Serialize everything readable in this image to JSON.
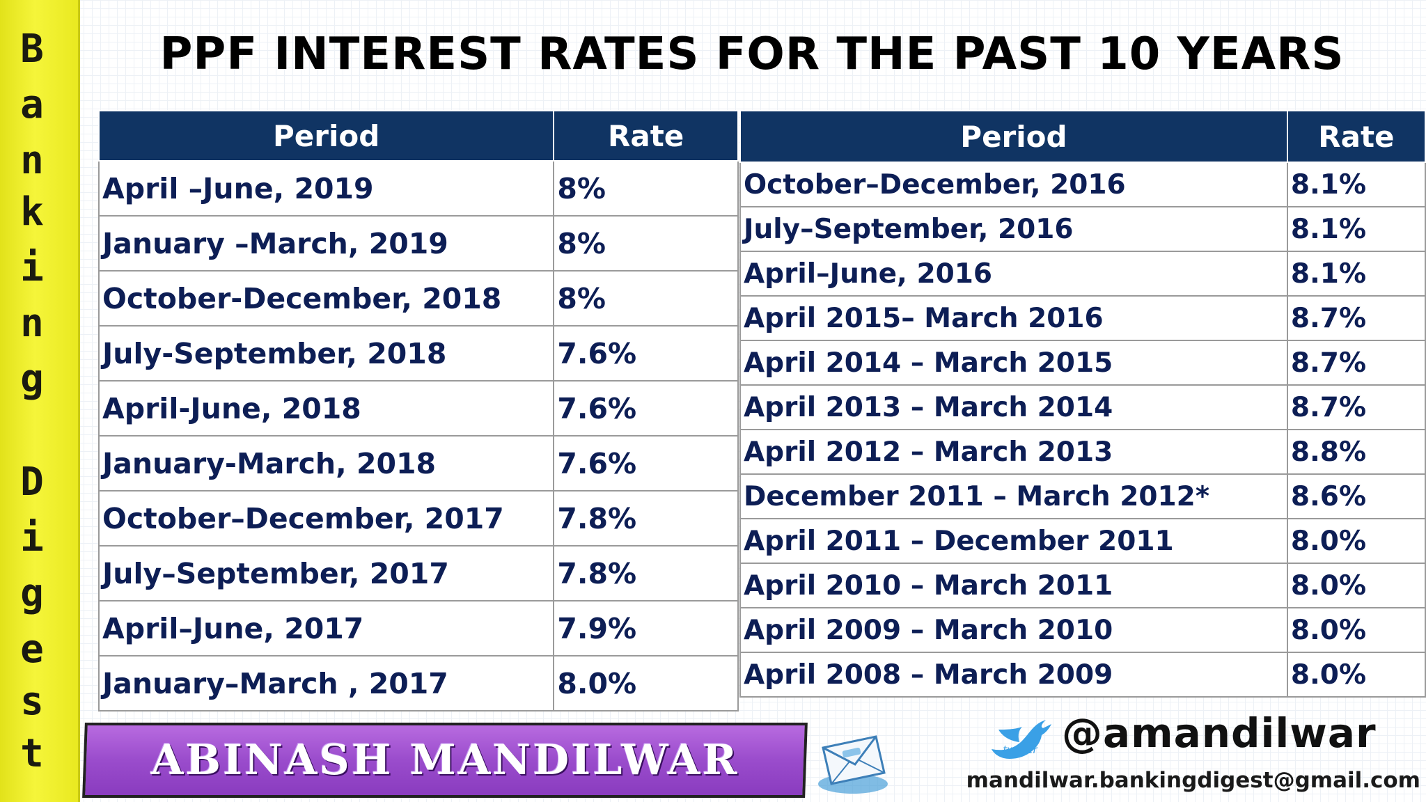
{
  "side_label": {
    "letters": [
      "B",
      "a",
      "n",
      "k",
      "i",
      "n",
      "g",
      "D",
      "i",
      "g",
      "e",
      "s",
      "t"
    ]
  },
  "title": "PPF INTEREST RATES FOR THE PAST 10 YEARS",
  "left_table": {
    "headers": [
      "Period",
      "Rate"
    ],
    "rows": [
      [
        "April –June, 2019",
        "8%"
      ],
      [
        "January –March, 2019",
        "8%"
      ],
      [
        "October-December, 2018",
        "8%"
      ],
      [
        "July-September, 2018",
        "7.6%"
      ],
      [
        "April-June, 2018",
        "7.6%"
      ],
      [
        "January-March, 2018",
        "7.6%"
      ],
      [
        "October–December, 2017",
        "7.8%"
      ],
      [
        "July–September, 2017",
        "7.8%"
      ],
      [
        "April–June, 2017",
        "7.9%"
      ],
      [
        "January–March , 2017",
        "8.0%"
      ]
    ]
  },
  "right_table": {
    "headers": [
      "Period",
      "Rate"
    ],
    "rows": [
      [
        "October–December, 2016",
        "8.1%"
      ],
      [
        "July–September, 2016",
        "8.1%"
      ],
      [
        "April–June, 2016",
        "8.1%"
      ],
      [
        "April 2015– March 2016",
        "8.7%"
      ],
      [
        "April 2014 – March 2015",
        "8.7%"
      ],
      [
        "April 2013 – March 2014",
        "8.7%"
      ],
      [
        "April 2012 – March 2013",
        "8.8%"
      ],
      [
        "December 2011 – March 2012*",
        "8.6%"
      ],
      [
        "April 2011 – December 2011",
        "8.0%"
      ],
      [
        "April 2010 – March 2011",
        "8.0%"
      ],
      [
        "April 2009 – March 2010",
        "8.0%"
      ],
      [
        "April 2008 – March 2009",
        "8.0%"
      ]
    ]
  },
  "footer": {
    "author": "ABINASH MANDILWAR",
    "twitter_caption": "twitter",
    "handle": "@amandilwar",
    "email": "mandilwar.bankingdigest@gmail.com"
  },
  "colors": {
    "header_bg": "#103463",
    "cell_text": "#0d1e55",
    "strip_yellow": "#f5f53a",
    "banner_purple": "#9a4ccc",
    "twitter_blue": "#3aa0e6"
  },
  "icons": [
    "mail-icon",
    "twitter-bird-icon"
  ]
}
